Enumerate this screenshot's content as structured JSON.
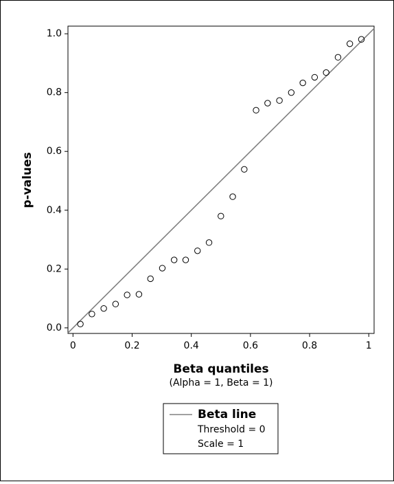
{
  "chart_data": {
    "type": "scatter",
    "x_label": "Beta quantiles",
    "x_sublabel": "(Alpha = 1, Beta = 1)",
    "y_label": "p-values",
    "x": [
      0.025,
      0.064,
      0.104,
      0.144,
      0.183,
      0.223,
      0.262,
      0.302,
      0.342,
      0.381,
      0.421,
      0.46,
      0.5,
      0.54,
      0.579,
      0.619,
      0.658,
      0.698,
      0.738,
      0.777,
      0.817,
      0.856,
      0.896,
      0.936,
      0.975
    ],
    "values": [
      0.013,
      0.047,
      0.066,
      0.081,
      0.112,
      0.114,
      0.167,
      0.203,
      0.231,
      0.231,
      0.262,
      0.29,
      0.38,
      0.446,
      0.539,
      0.74,
      0.764,
      0.773,
      0.8,
      0.833,
      0.852,
      0.868,
      0.92,
      0.966,
      0.981
    ],
    "xlim": [
      -0.017,
      1.018
    ],
    "ylim": [
      -0.019,
      1.026
    ],
    "xticks": [
      0,
      0.2,
      0.4,
      0.6,
      0.8,
      1
    ],
    "yticks": [
      {
        "value": 0,
        "label": "0.0"
      },
      0.2,
      0.4,
      0.6,
      0.8,
      {
        "value": 1,
        "label": "1.0"
      }
    ],
    "reference_line": {
      "name": "Beta line",
      "color": "#808080",
      "details": [
        "Threshold = 0",
        "Scale = 1"
      ]
    },
    "marker_color": "#000000",
    "grid": false
  }
}
